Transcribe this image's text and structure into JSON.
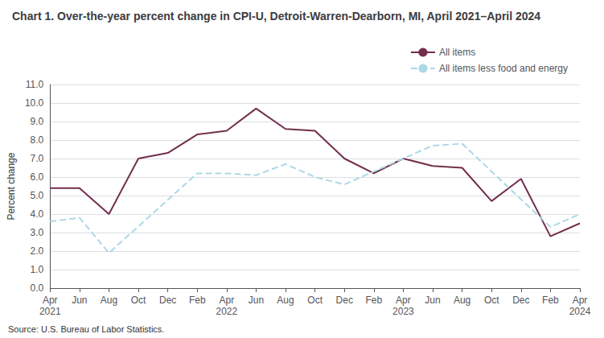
{
  "chart_data": {
    "type": "line",
    "title": "Chart 1. Over-the-year percent change in CPI-U, Detroit-Warren-Dearborn, MI, April 2021–April 2024",
    "y_label": "Percent change",
    "annotations": [
      "Source: U.S. Bureau of Labor Statistics."
    ],
    "categories": [
      "Apr\n2021",
      "Jun",
      "Aug",
      "Oct",
      "Dec",
      "Feb",
      "Apr\n2022",
      "Jun",
      "Aug",
      "Oct",
      "Dec",
      "Feb",
      "Apr\n2023",
      "Jun",
      "Aug",
      "Oct",
      "Dec",
      "Feb",
      "Apr\n2024"
    ],
    "series": [
      {
        "name": "All items",
        "color": "#722f4b",
        "line_style": "solid",
        "values": [
          5.4,
          5.4,
          4.0,
          7.0,
          7.3,
          8.3,
          8.5,
          9.7,
          8.6,
          8.5,
          7.0,
          6.2,
          7.0,
          6.6,
          6.5,
          4.7,
          5.9,
          2.8,
          3.5
        ]
      },
      {
        "name": "All items less food and energy",
        "color": "#add8e6",
        "line_style": "dashed",
        "values": [
          3.6,
          3.8,
          1.9,
          null,
          null,
          6.2,
          6.2,
          6.1,
          6.7,
          6.0,
          5.6,
          null,
          7.0,
          7.7,
          7.8,
          null,
          null,
          3.3,
          4.0
        ]
      }
    ],
    "ylim": [
      0.0,
      11.0
    ],
    "yticks": [
      {
        "value": 0,
        "label": "0.0"
      },
      {
        "value": 1,
        "label": "1.0"
      },
      {
        "value": 2,
        "label": "2.0"
      },
      {
        "value": 3,
        "label": "3.0"
      },
      {
        "value": 4,
        "label": "4.0"
      },
      {
        "value": 5,
        "label": "5.0"
      },
      {
        "value": 6,
        "label": "6.0"
      },
      {
        "value": 7,
        "label": "7.0"
      },
      {
        "value": 8,
        "label": "8.0"
      },
      {
        "value": 9,
        "label": "9.0"
      },
      {
        "value": 10,
        "label": "10.0"
      },
      {
        "value": 11,
        "label": "11.0"
      }
    ],
    "grid": true,
    "legend": "upper right"
  }
}
